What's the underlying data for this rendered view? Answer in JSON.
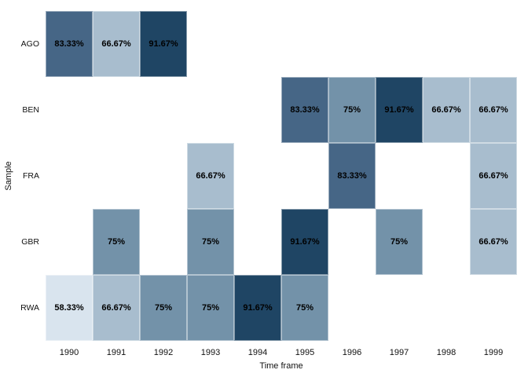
{
  "chart_data": {
    "type": "heatmap",
    "title": "",
    "xlabel": "Time frame",
    "ylabel": "Sample",
    "x_categories": [
      "1990",
      "1991",
      "1992",
      "1993",
      "1994",
      "1995",
      "1996",
      "1997",
      "1998",
      "1999"
    ],
    "y_categories": [
      "AGO",
      "BEN",
      "FRA",
      "GBR",
      "RWA"
    ],
    "legend": "none",
    "grid": "off",
    "value_colors": {
      "58.33": "#d9e4ee",
      "66.67": "#a8bdce",
      "75": "#7392a9",
      "83.33": "#466686",
      "91.67": "#1f4564"
    },
    "cells": [
      {
        "y": "AGO",
        "x": "1990",
        "value": 83.33,
        "label": "83.33%"
      },
      {
        "y": "AGO",
        "x": "1991",
        "value": 66.67,
        "label": "66.67%"
      },
      {
        "y": "AGO",
        "x": "1992",
        "value": 91.67,
        "label": "91.67%"
      },
      {
        "y": "BEN",
        "x": "1995",
        "value": 83.33,
        "label": "83.33%"
      },
      {
        "y": "BEN",
        "x": "1996",
        "value": 75,
        "label": "75%"
      },
      {
        "y": "BEN",
        "x": "1997",
        "value": 91.67,
        "label": "91.67%"
      },
      {
        "y": "BEN",
        "x": "1998",
        "value": 66.67,
        "label": "66.67%"
      },
      {
        "y": "BEN",
        "x": "1999",
        "value": 66.67,
        "label": "66.67%"
      },
      {
        "y": "FRA",
        "x": "1993",
        "value": 66.67,
        "label": "66.67%"
      },
      {
        "y": "FRA",
        "x": "1996",
        "value": 83.33,
        "label": "83.33%"
      },
      {
        "y": "FRA",
        "x": "1999",
        "value": 66.67,
        "label": "66.67%"
      },
      {
        "y": "GBR",
        "x": "1991",
        "value": 75,
        "label": "75%"
      },
      {
        "y": "GBR",
        "x": "1993",
        "value": 75,
        "label": "75%"
      },
      {
        "y": "GBR",
        "x": "1995",
        "value": 91.67,
        "label": "91.67%"
      },
      {
        "y": "GBR",
        "x": "1997",
        "value": 75,
        "label": "75%"
      },
      {
        "y": "GBR",
        "x": "1999",
        "value": 66.67,
        "label": "66.67%"
      },
      {
        "y": "RWA",
        "x": "1990",
        "value": 58.33,
        "label": "58.33%"
      },
      {
        "y": "RWA",
        "x": "1991",
        "value": 66.67,
        "label": "66.67%"
      },
      {
        "y": "RWA",
        "x": "1992",
        "value": 75,
        "label": "75%"
      },
      {
        "y": "RWA",
        "x": "1993",
        "value": 75,
        "label": "75%"
      },
      {
        "y": "RWA",
        "x": "1994",
        "value": 91.67,
        "label": "91.67%"
      },
      {
        "y": "RWA",
        "x": "1995",
        "value": 75,
        "label": "75%"
      }
    ]
  },
  "colors": {
    "background": "#ffffff",
    "label_text": "#000000",
    "axis_text": "#111111"
  }
}
